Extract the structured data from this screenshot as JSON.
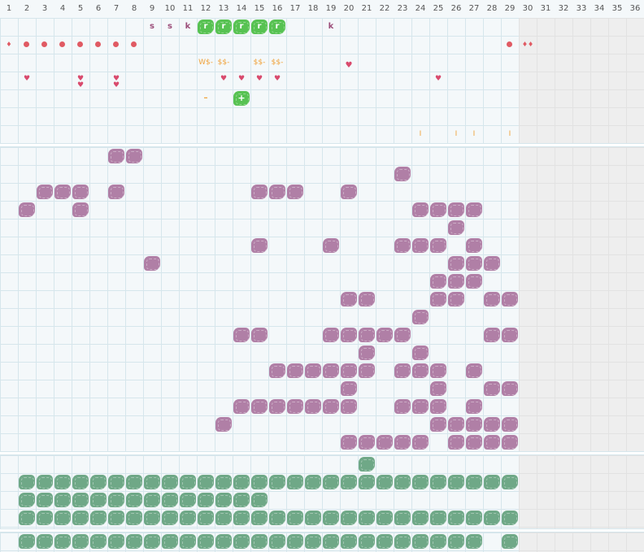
{
  "colors": {
    "purple": "#b07fa6",
    "green": "#6fa887",
    "bright_green": "#57c252",
    "red": "#e05a63",
    "pink": "#d94a6d",
    "orange": "#f0a23a",
    "letter": "#9b4d79"
  },
  "day_numbers": [
    "1",
    "2",
    "3",
    "4",
    "5",
    "6",
    "7",
    "8",
    "9",
    "10",
    "11",
    "12",
    "13",
    "14",
    "15",
    "16",
    "17",
    "18",
    "19",
    "20",
    "21",
    "22",
    "23",
    "24",
    "25",
    "26",
    "27",
    "28",
    "29",
    "30",
    "31",
    "32",
    "33",
    "34",
    "35",
    "36"
  ],
  "top_marks": {
    "letters": [
      {
        "col": 9,
        "row": 1,
        "text": "s"
      },
      {
        "col": 10,
        "row": 1,
        "text": "s"
      },
      {
        "col": 11,
        "row": 1,
        "text": "k"
      },
      {
        "col": 19,
        "row": 1,
        "text": "k"
      }
    ],
    "green_r": [
      {
        "col": 12,
        "row": 1,
        "text": "r"
      },
      {
        "col": 13,
        "row": 1,
        "text": "r"
      },
      {
        "col": 14,
        "row": 1,
        "text": "r"
      },
      {
        "col": 15,
        "row": 1,
        "text": "r"
      },
      {
        "col": 16,
        "row": 1,
        "text": "r"
      }
    ],
    "green_plus": [
      {
        "col": 14,
        "row": 5,
        "text": "+"
      }
    ],
    "dollars": [
      {
        "col": 12,
        "row": 3,
        "text": "W$-"
      },
      {
        "col": 13,
        "row": 3,
        "text": "$$-"
      },
      {
        "col": 15,
        "row": 3,
        "text": "$$-"
      },
      {
        "col": 16,
        "row": 3,
        "text": "$$-"
      }
    ],
    "dash": [
      {
        "col": 12,
        "row": 5,
        "text": "–"
      }
    ],
    "bars": [
      {
        "col": 24,
        "row": 7,
        "text": "I"
      },
      {
        "col": 26,
        "row": 7,
        "text": "I"
      },
      {
        "col": 27,
        "row": 7,
        "text": "I"
      },
      {
        "col": 29,
        "row": 7,
        "text": "I"
      }
    ],
    "dots_row2": [
      2,
      3,
      4,
      5,
      6,
      7,
      8,
      29
    ],
    "drops_row2": [
      {
        "col": 1,
        "text": "♦"
      },
      {
        "col": 30,
        "text": "♦♦"
      }
    ],
    "hearts_row4": [
      {
        "col": 2,
        "text": "♥"
      },
      {
        "col": 5,
        "text": "♥​♥"
      },
      {
        "col": 7,
        "text": "♥​♥"
      },
      {
        "col": 13,
        "text": "♥"
      },
      {
        "col": 14,
        "text": "♥"
      },
      {
        "col": 15,
        "text": "♥"
      },
      {
        "col": 16,
        "text": "♥"
      },
      {
        "col": 25,
        "text": "♥"
      }
    ],
    "hearts_row3": [
      {
        "col": 20,
        "text": "♥"
      }
    ]
  },
  "purple_cells": [
    [
      7,
      1
    ],
    [
      8,
      1
    ],
    [
      23,
      2
    ],
    [
      3,
      3
    ],
    [
      4,
      3
    ],
    [
      5,
      3
    ],
    [
      7,
      3
    ],
    [
      15,
      3
    ],
    [
      16,
      3
    ],
    [
      17,
      3
    ],
    [
      20,
      3
    ],
    [
      2,
      4
    ],
    [
      5,
      4
    ],
    [
      24,
      4
    ],
    [
      25,
      4
    ],
    [
      26,
      4
    ],
    [
      27,
      4
    ],
    [
      26,
      5
    ],
    [
      15,
      6
    ],
    [
      19,
      6
    ],
    [
      23,
      6
    ],
    [
      24,
      6
    ],
    [
      25,
      6
    ],
    [
      27,
      6
    ],
    [
      9,
      7
    ],
    [
      26,
      7
    ],
    [
      27,
      7
    ],
    [
      28,
      7
    ],
    [
      25,
      8
    ],
    [
      26,
      8
    ],
    [
      27,
      8
    ],
    [
      20,
      9
    ],
    [
      21,
      9
    ],
    [
      25,
      9
    ],
    [
      26,
      9
    ],
    [
      28,
      9
    ],
    [
      29,
      9
    ],
    [
      24,
      10
    ],
    [
      14,
      11
    ],
    [
      15,
      11
    ],
    [
      19,
      11
    ],
    [
      20,
      11
    ],
    [
      21,
      11
    ],
    [
      22,
      11
    ],
    [
      23,
      11
    ],
    [
      28,
      11
    ],
    [
      29,
      11
    ],
    [
      21,
      12
    ],
    [
      24,
      12
    ],
    [
      16,
      13
    ],
    [
      17,
      13
    ],
    [
      18,
      13
    ],
    [
      19,
      13
    ],
    [
      20,
      13
    ],
    [
      21,
      13
    ],
    [
      23,
      13
    ],
    [
      24,
      13
    ],
    [
      25,
      13
    ],
    [
      27,
      13
    ],
    [
      20,
      14
    ],
    [
      25,
      14
    ],
    [
      28,
      14
    ],
    [
      29,
      14
    ],
    [
      14,
      15
    ],
    [
      15,
      15
    ],
    [
      16,
      15
    ],
    [
      17,
      15
    ],
    [
      18,
      15
    ],
    [
      19,
      15
    ],
    [
      20,
      15
    ],
    [
      23,
      15
    ],
    [
      24,
      15
    ],
    [
      25,
      15
    ],
    [
      27,
      15
    ],
    [
      13,
      16
    ],
    [
      25,
      16
    ],
    [
      26,
      16
    ],
    [
      27,
      16
    ],
    [
      28,
      16
    ],
    [
      29,
      16
    ],
    [
      20,
      17
    ],
    [
      21,
      17
    ],
    [
      22,
      17
    ],
    [
      23,
      17
    ],
    [
      24,
      17
    ],
    [
      26,
      17
    ],
    [
      27,
      17
    ],
    [
      28,
      17
    ],
    [
      29,
      17
    ]
  ],
  "green_rows_section3": [
    {
      "row": 1,
      "cols": [
        21
      ]
    },
    {
      "row": 2,
      "cols": [
        2,
        3,
        4,
        5,
        6,
        7,
        8,
        9,
        10,
        11,
        12,
        13,
        14,
        15,
        16,
        17,
        18,
        19,
        20,
        21,
        22,
        23,
        24,
        25,
        26,
        27,
        28,
        29
      ]
    },
    {
      "row": 3,
      "cols": [
        2,
        3,
        4,
        5,
        6,
        7,
        8,
        9,
        10,
        11,
        12,
        13,
        14,
        15
      ]
    },
    {
      "row": 4,
      "cols": [
        2,
        3,
        4,
        5,
        6,
        7,
        8,
        9,
        10,
        11,
        12,
        13,
        14,
        15,
        16,
        17,
        18,
        19,
        20,
        21,
        22,
        23,
        24,
        25,
        26,
        27,
        28,
        29
      ]
    }
  ],
  "green_row_section4": [
    2,
    3,
    4,
    5,
    6,
    7,
    8,
    9,
    10,
    11,
    12,
    13,
    14,
    15,
    16,
    17,
    18,
    19,
    20,
    21,
    22,
    23,
    24,
    25,
    26,
    27,
    29
  ]
}
